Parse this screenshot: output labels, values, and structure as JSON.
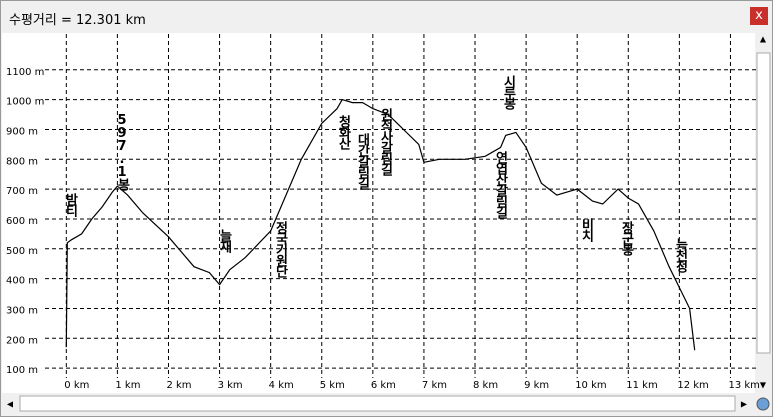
{
  "chart_data": {
    "type": "line",
    "title": "수평거리 = 12.301 km",
    "x": [
      0,
      0.02,
      0.1,
      0.3,
      0.5,
      0.7,
      0.9,
      1.0,
      1.2,
      1.5,
      2.0,
      2.5,
      2.8,
      3.0,
      3.2,
      3.5,
      4.0,
      4.3,
      4.6,
      5.0,
      5.3,
      5.4,
      5.6,
      5.8,
      6.0,
      6.3,
      6.6,
      6.9,
      7.0,
      7.3,
      7.8,
      8.2,
      8.5,
      8.6,
      8.8,
      9.0,
      9.3,
      9.6,
      10.0,
      10.3,
      10.5,
      10.8,
      11.0,
      11.2,
      11.5,
      11.8,
      12.0,
      12.2,
      12.301
    ],
    "series": [
      {
        "color": "#000000",
        "values": [
          170,
          520,
          530,
          550,
          600,
          640,
          690,
          710,
          680,
          620,
          540,
          440,
          420,
          380,
          430,
          470,
          560,
          680,
          800,
          920,
          970,
          1000,
          990,
          990,
          970,
          950,
          900,
          850,
          790,
          800,
          800,
          810,
          840,
          880,
          890,
          840,
          720,
          680,
          700,
          660,
          650,
          700,
          670,
          650,
          560,
          440,
          370,
          300,
          160
        ]
      }
    ],
    "xlim": [
      -1.2,
      13.5
    ],
    "ylim": [
      40,
      1220
    ],
    "xticks": [
      {
        "value": 0,
        "label": "0 km"
      },
      {
        "value": 1,
        "label": "1 km"
      },
      {
        "value": 2,
        "label": "2 km"
      },
      {
        "value": 3,
        "label": "3 km"
      },
      {
        "value": 4,
        "label": "4 km"
      },
      {
        "value": 5,
        "label": "5 km"
      },
      {
        "value": 6,
        "label": "6 km"
      },
      {
        "value": 7,
        "label": "7 km"
      },
      {
        "value": 8,
        "label": "8 km"
      },
      {
        "value": 9,
        "label": "9 km"
      },
      {
        "value": 10,
        "label": "10 km"
      },
      {
        "value": 11,
        "label": "11 km"
      },
      {
        "value": 12,
        "label": "12 km"
      },
      {
        "value": 13,
        "label": "13 km"
      }
    ],
    "yticks": [
      {
        "value": 100,
        "label": "100 m"
      },
      {
        "value": 200,
        "label": "200 m"
      },
      {
        "value": 300,
        "label": "300 m"
      },
      {
        "value": 400,
        "label": "400 m"
      },
      {
        "value": 500,
        "label": "500 m"
      },
      {
        "value": 600,
        "label": "600 m"
      },
      {
        "value": 700,
        "label": "700 m"
      },
      {
        "value": 800,
        "label": "800 m"
      },
      {
        "value": 900,
        "label": "900 m"
      },
      {
        "value": 1000,
        "label": "1000 m"
      },
      {
        "value": 1100,
        "label": "1100 m"
      }
    ],
    "grid": true,
    "annotations": [
      "밤티",
      "597.1봉",
      "늘재",
      "정국기원단",
      "청화산",
      "대간갈림길",
      "원적사갈림길",
      "시루봉",
      "연엽산갈림길",
      "비치",
      "장군봉",
      "늑천정"
    ]
  }
}
